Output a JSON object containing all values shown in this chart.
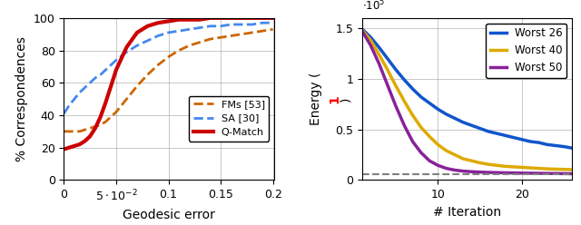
{
  "left": {
    "xlabel": "Geodesic error",
    "ylabel": "% Correspondences",
    "xlim": [
      0,
      0.201
    ],
    "ylim": [
      0,
      100
    ],
    "yticks": [
      0,
      20,
      40,
      60,
      80,
      100
    ],
    "lines": [
      {
        "label": "FMs [53]",
        "color": "#cc6600",
        "linestyle": "dashed",
        "linewidth": 2.0,
        "x": [
          0.0,
          0.005,
          0.01,
          0.015,
          0.02,
          0.025,
          0.03,
          0.035,
          0.04,
          0.05,
          0.06,
          0.07,
          0.08,
          0.09,
          0.1,
          0.11,
          0.12,
          0.13,
          0.14,
          0.15,
          0.16,
          0.17,
          0.18,
          0.19,
          0.2
        ],
        "y": [
          30,
          30,
          30,
          30,
          31,
          32,
          33,
          34,
          36,
          42,
          50,
          58,
          65,
          71,
          76,
          80,
          83,
          85,
          87,
          88,
          89,
          90,
          91,
          92,
          93
        ]
      },
      {
        "label": "SA [30]",
        "color": "#4488ee",
        "linestyle": "dashed",
        "linewidth": 2.0,
        "x": [
          0.0,
          0.005,
          0.01,
          0.015,
          0.02,
          0.025,
          0.03,
          0.035,
          0.04,
          0.05,
          0.06,
          0.07,
          0.08,
          0.09,
          0.1,
          0.11,
          0.12,
          0.13,
          0.14,
          0.15,
          0.16,
          0.17,
          0.18,
          0.19,
          0.2
        ],
        "y": [
          41,
          46,
          50,
          54,
          57,
          60,
          63,
          65,
          68,
          74,
          79,
          83,
          86,
          89,
          91,
          92,
          93,
          94,
          95,
          95,
          96,
          96,
          96,
          97,
          97
        ]
      },
      {
        "label": "Q-Match",
        "color": "#cc0000",
        "linestyle": "solid",
        "linewidth": 3.0,
        "x": [
          0.0,
          0.005,
          0.01,
          0.015,
          0.02,
          0.025,
          0.03,
          0.035,
          0.04,
          0.05,
          0.06,
          0.07,
          0.08,
          0.09,
          0.1,
          0.11,
          0.12,
          0.13,
          0.14,
          0.15,
          0.16,
          0.17,
          0.18,
          0.19,
          0.2
        ],
        "y": [
          19,
          20,
          21,
          22,
          24,
          27,
          32,
          39,
          48,
          68,
          82,
          91,
          95,
          97,
          98,
          99,
          99,
          99,
          100,
          100,
          100,
          100,
          100,
          100,
          100
        ]
      }
    ]
  },
  "right": {
    "xlabel": "# Iteration",
    "xlim": [
      1,
      26
    ],
    "ylim": [
      0,
      160000
    ],
    "yticks": [
      0,
      50000,
      100000,
      150000
    ],
    "yticklabels": [
      "0",
      "0.5",
      "1",
      "1.5"
    ],
    "xticks": [
      10,
      20
    ],
    "dashed_y": 5500,
    "lines": [
      {
        "label": "Worst 26",
        "color": "#1155cc",
        "linewidth": 2.5,
        "x": [
          1,
          2,
          3,
          4,
          5,
          6,
          7,
          8,
          9,
          10,
          11,
          12,
          13,
          14,
          15,
          16,
          17,
          18,
          19,
          20,
          21,
          22,
          23,
          24,
          25,
          26
        ],
        "y": [
          149000,
          141000,
          131000,
          120000,
          109000,
          99000,
          90000,
          82000,
          76000,
          70000,
          65000,
          61000,
          57000,
          54000,
          51000,
          48000,
          46000,
          44000,
          42000,
          40000,
          38000,
          37000,
          35000,
          34000,
          33000,
          31500
        ]
      },
      {
        "label": "Worst 40",
        "color": "#ddaa00",
        "linewidth": 2.5,
        "x": [
          1,
          2,
          3,
          4,
          5,
          6,
          7,
          8,
          9,
          10,
          11,
          12,
          13,
          14,
          15,
          16,
          17,
          18,
          19,
          20,
          21,
          22,
          23,
          24,
          25,
          26
        ],
        "y": [
          148000,
          138000,
          124000,
          109000,
          93000,
          78000,
          64000,
          52000,
          43000,
          35000,
          29000,
          25000,
          21000,
          19000,
          17000,
          15500,
          14500,
          13500,
          13000,
          12500,
          12000,
          11500,
          11000,
          10700,
          10500,
          10200
        ]
      },
      {
        "label": "Worst 50",
        "color": "#882299",
        "linewidth": 2.5,
        "x": [
          1,
          2,
          3,
          4,
          5,
          6,
          7,
          8,
          9,
          10,
          11,
          12,
          13,
          14,
          15,
          16,
          17,
          18,
          19,
          20,
          21,
          22,
          23,
          24,
          25,
          26
        ],
        "y": [
          147000,
          133000,
          115000,
          94000,
          73000,
          54000,
          38000,
          27000,
          19000,
          14500,
          11500,
          9800,
          8800,
          8200,
          7800,
          7500,
          7300,
          7100,
          7000,
          6800,
          6700,
          6600,
          6500,
          6400,
          6300,
          6200
        ]
      }
    ]
  }
}
